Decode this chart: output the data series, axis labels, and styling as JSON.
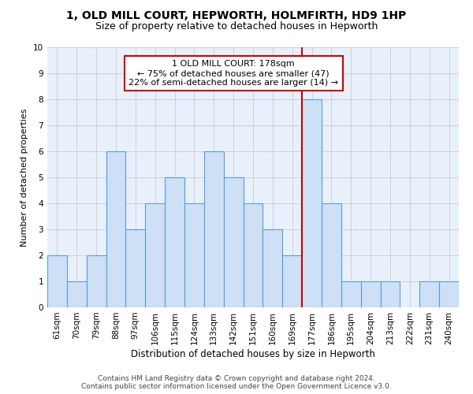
{
  "title": "1, OLD MILL COURT, HEPWORTH, HOLMFIRTH, HD9 1HP",
  "subtitle": "Size of property relative to detached houses in Hepworth",
  "xlabel": "Distribution of detached houses by size in Hepworth",
  "ylabel": "Number of detached properties",
  "categories": [
    "61sqm",
    "70sqm",
    "79sqm",
    "88sqm",
    "97sqm",
    "106sqm",
    "115sqm",
    "124sqm",
    "133sqm",
    "142sqm",
    "151sqm",
    "160sqm",
    "169sqm",
    "177sqm",
    "186sqm",
    "195sqm",
    "204sqm",
    "213sqm",
    "222sqm",
    "231sqm",
    "240sqm"
  ],
  "values": [
    2,
    1,
    2,
    6,
    3,
    4,
    5,
    4,
    6,
    5,
    4,
    3,
    2,
    8,
    4,
    1,
    1,
    1,
    0,
    1,
    1
  ],
  "bar_color": "#cde0f5",
  "bar_edge_color": "#5b9bd5",
  "highlight_line_idx": 13,
  "annotation_text": "1 OLD MILL COURT: 178sqm\n← 75% of detached houses are smaller (47)\n22% of semi-detached houses are larger (14) →",
  "annotation_box_color": "#ffffff",
  "annotation_box_edge": "#cc0000",
  "ylim": [
    0,
    10
  ],
  "yticks": [
    0,
    1,
    2,
    3,
    4,
    5,
    6,
    7,
    8,
    9,
    10
  ],
  "grid_color": "#cccccc",
  "background_color": "#e8f0fb",
  "footer": "Contains HM Land Registry data © Crown copyright and database right 2024.\nContains public sector information licensed under the Open Government Licence v3.0.",
  "title_fontsize": 10,
  "subtitle_fontsize": 9,
  "xlabel_fontsize": 8.5,
  "ylabel_fontsize": 8,
  "tick_fontsize": 7.5,
  "annotation_fontsize": 8,
  "footer_fontsize": 6.5
}
